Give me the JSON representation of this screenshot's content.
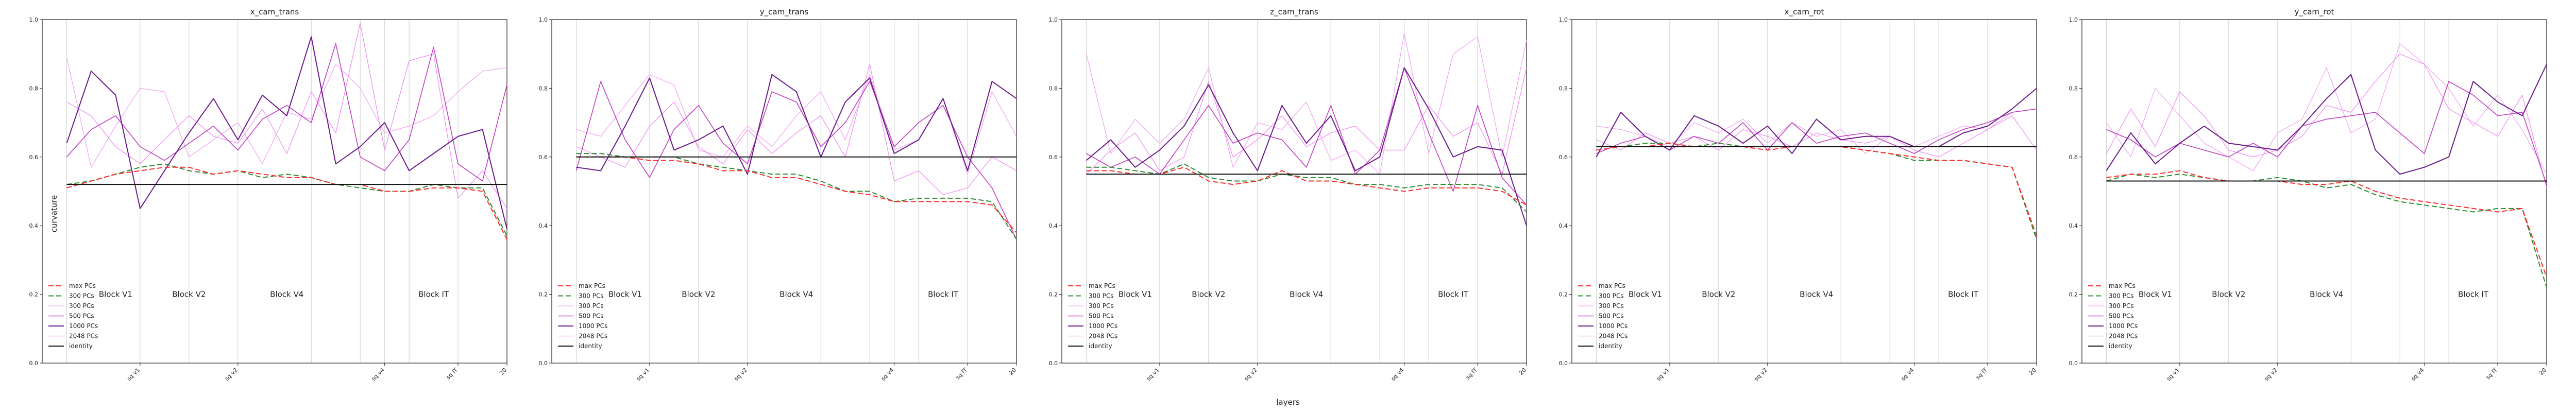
{
  "figure": {
    "xlabel": "layers",
    "ylabel": "curvature",
    "block_labels": [
      "Block V1",
      "Block V2",
      "Block V4",
      "Block IT"
    ],
    "x_tick_labels": [
      "sq v1",
      "sq v2",
      "sq v4",
      "sq IT",
      "20"
    ],
    "y_tick_labels": [
      "0.0",
      "0.2",
      "0.4",
      "0.6",
      "0.8",
      "1.0"
    ]
  },
  "legend": [
    {
      "label": "max PCs",
      "color": "#ff2a2a",
      "dash": "dashed",
      "width": 2
    },
    {
      "label": "300 PCs",
      "color": "#2e8b2e",
      "dash": "dashed",
      "width": 2
    },
    {
      "label": "300 PCs",
      "color": "#f0a8f0",
      "dash": "solid",
      "width": 1.3
    },
    {
      "label": "500 PCs",
      "color": "#c040c0",
      "dash": "solid",
      "width": 1.6
    },
    {
      "label": "1000 PCs",
      "color": "#6a1a8a",
      "dash": "solid",
      "width": 2
    },
    {
      "label": "2048 PCs",
      "color": "#f090f0",
      "dash": "solid",
      "width": 1.3
    },
    {
      "label": "identity",
      "color": "#111111",
      "dash": "solid",
      "width": 2
    }
  ],
  "chart_data": [
    {
      "type": "line",
      "title": "x_cam_trans",
      "xlim": [
        0,
        19
      ],
      "ylim": [
        0,
        1
      ],
      "x": [
        1,
        2,
        3,
        4,
        5,
        6,
        7,
        8,
        9,
        10,
        11,
        12,
        13,
        14,
        15,
        16,
        17,
        18,
        19
      ],
      "identity": 0.52,
      "series": [
        {
          "name": "max PCs",
          "values": [
            0.51,
            0.53,
            0.55,
            0.56,
            0.57,
            0.57,
            0.55,
            0.56,
            0.55,
            0.54,
            0.54,
            0.52,
            0.52,
            0.5,
            0.5,
            0.51,
            0.51,
            0.5,
            0.36
          ]
        },
        {
          "name": "300 PCs",
          "values": [
            0.52,
            0.53,
            0.55,
            0.57,
            0.58,
            0.56,
            0.55,
            0.56,
            0.54,
            0.55,
            0.54,
            0.52,
            0.51,
            0.5,
            0.5,
            0.52,
            0.51,
            0.51,
            0.37
          ]
        },
        {
          "name": "300 PCs",
          "values": [
            0.89,
            0.57,
            0.69,
            0.8,
            0.79,
            0.6,
            0.65,
            0.7,
            0.58,
            0.73,
            0.71,
            0.87,
            0.8,
            0.67,
            0.69,
            0.72,
            0.79,
            0.85,
            0.86
          ]
        },
        {
          "name": "500 PCs",
          "values": [
            0.6,
            0.68,
            0.72,
            0.63,
            0.59,
            0.64,
            0.69,
            0.62,
            0.71,
            0.75,
            0.7,
            0.93,
            0.6,
            0.56,
            0.65,
            0.92,
            0.58,
            0.53,
            0.81
          ]
        },
        {
          "name": "1000 PCs",
          "values": [
            0.64,
            0.85,
            0.78,
            0.45,
            0.56,
            0.67,
            0.77,
            0.65,
            0.78,
            0.72,
            0.95,
            0.58,
            0.63,
            0.7,
            0.56,
            0.61,
            0.66,
            0.68,
            0.39
          ]
        },
        {
          "name": "2048 PCs",
          "values": [
            0.76,
            0.72,
            0.63,
            0.58,
            0.65,
            0.72,
            0.66,
            0.64,
            0.74,
            0.61,
            0.79,
            0.67,
            0.99,
            0.62,
            0.88,
            0.9,
            0.48,
            0.56,
            0.45
          ]
        }
      ]
    },
    {
      "type": "line",
      "title": "y_cam_trans",
      "xlim": [
        0,
        19
      ],
      "ylim": [
        0,
        1
      ],
      "x": [
        1,
        2,
        3,
        4,
        5,
        6,
        7,
        8,
        9,
        10,
        11,
        12,
        13,
        14,
        15,
        16,
        17,
        18,
        19
      ],
      "identity": 0.6,
      "series": [
        {
          "name": "max PCs",
          "values": [
            0.6,
            0.6,
            0.6,
            0.59,
            0.59,
            0.58,
            0.56,
            0.56,
            0.54,
            0.54,
            0.52,
            0.5,
            0.49,
            0.47,
            0.47,
            0.47,
            0.47,
            0.46,
            0.38
          ]
        },
        {
          "name": "300 PCs",
          "values": [
            0.61,
            0.61,
            0.6,
            0.6,
            0.6,
            0.58,
            0.57,
            0.56,
            0.55,
            0.55,
            0.53,
            0.5,
            0.5,
            0.47,
            0.48,
            0.48,
            0.48,
            0.47,
            0.36
          ]
        },
        {
          "name": "300 PCs",
          "values": [
            0.68,
            0.66,
            0.75,
            0.84,
            0.81,
            0.62,
            0.6,
            0.69,
            0.63,
            0.72,
            0.79,
            0.65,
            0.84,
            0.62,
            0.65,
            0.77,
            0.55,
            0.79,
            0.66
          ]
        },
        {
          "name": "500 PCs",
          "values": [
            0.56,
            0.82,
            0.65,
            0.54,
            0.68,
            0.75,
            0.64,
            0.58,
            0.79,
            0.76,
            0.63,
            0.7,
            0.82,
            0.63,
            0.7,
            0.75,
            0.6,
            0.51,
            0.36
          ]
        },
        {
          "name": "1000 PCs",
          "values": [
            0.57,
            0.56,
            0.69,
            0.83,
            0.62,
            0.65,
            0.69,
            0.55,
            0.84,
            0.79,
            0.6,
            0.76,
            0.83,
            0.61,
            0.65,
            0.77,
            0.56,
            0.82,
            0.77
          ]
        },
        {
          "name": "2048 PCs",
          "values": [
            0.63,
            0.6,
            0.57,
            0.69,
            0.76,
            0.63,
            0.58,
            0.68,
            0.61,
            0.67,
            0.72,
            0.6,
            0.87,
            0.53,
            0.56,
            0.49,
            0.51,
            0.6,
            0.56
          ]
        }
      ]
    },
    {
      "type": "line",
      "title": "z_cam_trans",
      "xlim": [
        0,
        19
      ],
      "ylim": [
        0,
        1
      ],
      "x": [
        1,
        2,
        3,
        4,
        5,
        6,
        7,
        8,
        9,
        10,
        11,
        12,
        13,
        14,
        15,
        16,
        17,
        18,
        19
      ],
      "identity": 0.55,
      "series": [
        {
          "name": "max PCs",
          "values": [
            0.56,
            0.56,
            0.55,
            0.55,
            0.57,
            0.53,
            0.52,
            0.53,
            0.56,
            0.53,
            0.53,
            0.52,
            0.51,
            0.5,
            0.51,
            0.51,
            0.51,
            0.5,
            0.46
          ]
        },
        {
          "name": "300 PCs",
          "values": [
            0.57,
            0.57,
            0.56,
            0.55,
            0.58,
            0.54,
            0.53,
            0.53,
            0.55,
            0.54,
            0.54,
            0.52,
            0.52,
            0.51,
            0.52,
            0.52,
            0.52,
            0.51,
            0.44
          ]
        },
        {
          "name": "300 PCs",
          "values": [
            0.9,
            0.61,
            0.71,
            0.64,
            0.71,
            0.86,
            0.57,
            0.7,
            0.68,
            0.76,
            0.59,
            0.62,
            0.55,
            0.96,
            0.61,
            0.9,
            0.95,
            0.6,
            0.94
          ]
        },
        {
          "name": "500 PCs",
          "values": [
            0.61,
            0.57,
            0.6,
            0.55,
            0.65,
            0.75,
            0.64,
            0.67,
            0.65,
            0.57,
            0.75,
            0.55,
            0.62,
            0.86,
            0.67,
            0.5,
            0.75,
            0.54,
            0.46
          ]
        },
        {
          "name": "1000 PCs",
          "values": [
            0.59,
            0.65,
            0.57,
            0.62,
            0.69,
            0.81,
            0.67,
            0.56,
            0.75,
            0.64,
            0.72,
            0.56,
            0.6,
            0.86,
            0.74,
            0.6,
            0.63,
            0.62,
            0.4
          ]
        },
        {
          "name": "2048 PCs",
          "values": [
            0.55,
            0.62,
            0.67,
            0.56,
            0.6,
            0.82,
            0.6,
            0.65,
            0.72,
            0.63,
            0.67,
            0.69,
            0.62,
            0.62,
            0.75,
            0.66,
            0.7,
            0.55,
            0.86
          ]
        }
      ]
    },
    {
      "type": "line",
      "title": "x_cam_rot",
      "xlim": [
        0,
        19
      ],
      "ylim": [
        0,
        1
      ],
      "x": [
        1,
        2,
        3,
        4,
        5,
        6,
        7,
        8,
        9,
        10,
        11,
        12,
        13,
        14,
        15,
        16,
        17,
        18,
        19
      ],
      "identity": 0.63,
      "series": [
        {
          "name": "max PCs",
          "values": [
            0.62,
            0.63,
            0.63,
            0.64,
            0.63,
            0.63,
            0.63,
            0.62,
            0.63,
            0.63,
            0.63,
            0.62,
            0.61,
            0.6,
            0.59,
            0.59,
            0.58,
            0.57,
            0.37
          ]
        },
        {
          "name": "300 PCs",
          "values": [
            0.63,
            0.63,
            0.64,
            0.64,
            0.63,
            0.64,
            0.63,
            0.63,
            0.63,
            0.63,
            0.63,
            0.62,
            0.61,
            0.59,
            0.59,
            0.59,
            0.58,
            0.57,
            0.36
          ]
        },
        {
          "name": "300 PCs",
          "values": [
            0.69,
            0.68,
            0.66,
            0.63,
            0.7,
            0.67,
            0.71,
            0.64,
            0.7,
            0.66,
            0.68,
            0.61,
            0.66,
            0.63,
            0.66,
            0.69,
            0.68,
            0.73,
            0.74
          ]
        },
        {
          "name": "500 PCs",
          "values": [
            0.61,
            0.64,
            0.66,
            0.62,
            0.66,
            0.64,
            0.7,
            0.62,
            0.7,
            0.64,
            0.66,
            0.67,
            0.64,
            0.61,
            0.65,
            0.68,
            0.7,
            0.73,
            0.74
          ]
        },
        {
          "name": "1000 PCs",
          "values": [
            0.6,
            0.73,
            0.66,
            0.62,
            0.72,
            0.69,
            0.64,
            0.69,
            0.61,
            0.71,
            0.65,
            0.66,
            0.66,
            0.63,
            0.63,
            0.67,
            0.69,
            0.74,
            0.8
          ]
        },
        {
          "name": "2048 PCs",
          "values": [
            0.65,
            0.62,
            0.67,
            0.64,
            0.66,
            0.62,
            0.68,
            0.66,
            0.63,
            0.67,
            0.65,
            0.64,
            0.66,
            0.62,
            0.6,
            0.64,
            0.68,
            0.72,
            0.62
          ]
        }
      ]
    },
    {
      "type": "line",
      "title": "y_cam_rot",
      "xlim": [
        0,
        19
      ],
      "ylim": [
        0,
        1
      ],
      "x": [
        1,
        2,
        3,
        4,
        5,
        6,
        7,
        8,
        9,
        10,
        11,
        12,
        13,
        14,
        15,
        16,
        17,
        18,
        19
      ],
      "identity": 0.53,
      "series": [
        {
          "name": "max PCs",
          "values": [
            0.54,
            0.55,
            0.55,
            0.56,
            0.54,
            0.53,
            0.53,
            0.53,
            0.52,
            0.52,
            0.53,
            0.5,
            0.48,
            0.47,
            0.46,
            0.45,
            0.44,
            0.45,
            0.25
          ]
        },
        {
          "name": "300 PCs",
          "values": [
            0.53,
            0.55,
            0.54,
            0.55,
            0.54,
            0.53,
            0.53,
            0.54,
            0.53,
            0.51,
            0.52,
            0.49,
            0.47,
            0.46,
            0.45,
            0.44,
            0.45,
            0.45,
            0.22
          ]
        },
        {
          "name": "300 PCs",
          "values": [
            0.7,
            0.6,
            0.8,
            0.72,
            0.64,
            0.6,
            0.56,
            0.67,
            0.71,
            0.86,
            0.67,
            0.71,
            0.93,
            0.87,
            0.8,
            0.69,
            0.78,
            0.68,
            0.55
          ]
        },
        {
          "name": "500 PCs",
          "values": [
            0.68,
            0.65,
            0.6,
            0.64,
            0.62,
            0.6,
            0.64,
            0.6,
            0.69,
            0.71,
            0.72,
            0.73,
            0.67,
            0.61,
            0.82,
            0.78,
            0.72,
            0.73,
            0.52
          ]
        },
        {
          "name": "1000 PCs",
          "values": [
            0.56,
            0.67,
            0.58,
            0.64,
            0.69,
            0.64,
            0.63,
            0.62,
            0.69,
            0.77,
            0.84,
            0.62,
            0.55,
            0.57,
            0.6,
            0.82,
            0.76,
            0.72,
            0.87
          ]
        },
        {
          "name": "2048 PCs",
          "values": [
            0.61,
            0.74,
            0.63,
            0.79,
            0.72,
            0.62,
            0.6,
            0.62,
            0.66,
            0.75,
            0.73,
            0.82,
            0.9,
            0.87,
            0.74,
            0.7,
            0.66,
            0.78,
            0.51
          ]
        }
      ]
    }
  ]
}
